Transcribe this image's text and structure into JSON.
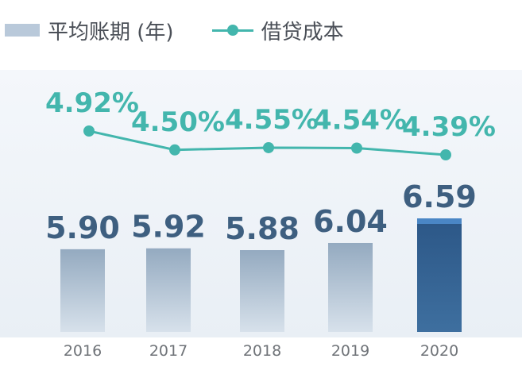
{
  "legend": {
    "bar_label": "平均账期 (年)",
    "line_label": "借贷成本"
  },
  "colors": {
    "bar": "#a3b8cc",
    "bar_highlight": "#2f5f8f",
    "bar_value_text": "#3e5f80",
    "line": "#43b6ad",
    "plot_background": "#eef3f8",
    "axis_label": "#6f7378"
  },
  "chart_data": {
    "type": "bar",
    "categories": [
      "2016",
      "2017",
      "2018",
      "2019",
      "2020"
    ],
    "series": [
      {
        "name": "平均账期 (年)",
        "type": "bar",
        "values": [
          5.9,
          5.92,
          5.88,
          6.04,
          6.59
        ],
        "labels": [
          "5.90",
          "5.92",
          "5.88",
          "6.04",
          "6.59"
        ],
        "highlight_index": 4
      },
      {
        "name": "借贷成本",
        "type": "line",
        "values": [
          4.92,
          4.5,
          4.55,
          4.54,
          4.39
        ],
        "labels": [
          "4.92%",
          "4.50%",
          "4.55%",
          "4.54%",
          "4.39%"
        ],
        "unit": "%"
      }
    ],
    "title": "",
    "xlabel": "",
    "ylabel": "",
    "grid": false,
    "legend_position": "top-left"
  }
}
